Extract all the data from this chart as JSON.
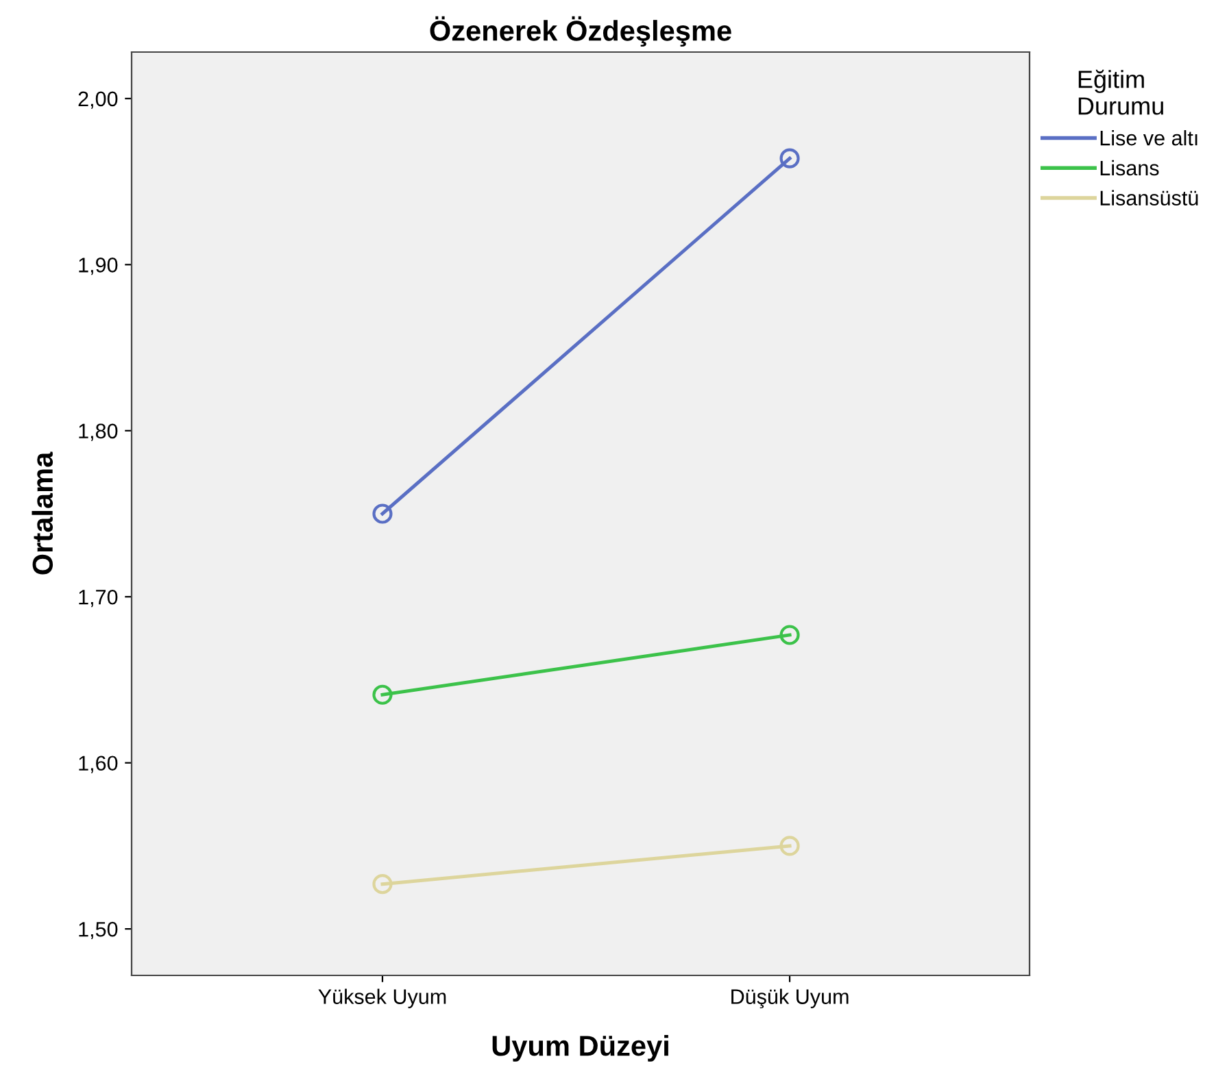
{
  "chart_data": {
    "type": "line",
    "title": "Özenerek Özdeşleşme",
    "xlabel": "Uyum Düzeyi",
    "ylabel": "Ortalama",
    "legend_title": "Eğitim\nDurumu",
    "categories": [
      "Yüksek Uyum",
      "Düşük Uyum"
    ],
    "series": [
      {
        "name": "Lise ve altı",
        "color": "#5a6fc4",
        "values": [
          1.75,
          1.964
        ]
      },
      {
        "name": "Lisans",
        "color": "#3cc24a",
        "values": [
          1.641,
          1.677
        ]
      },
      {
        "name": "Lisansüstü",
        "color": "#ddd59c",
        "values": [
          1.527,
          1.55
        ]
      }
    ],
    "ylim": [
      1.472,
      2.028
    ],
    "yticks": [
      {
        "value": 1.5,
        "label": "1,50"
      },
      {
        "value": 1.6,
        "label": "1,60"
      },
      {
        "value": 1.7,
        "label": "1,70"
      },
      {
        "value": 1.8,
        "label": "1,80"
      },
      {
        "value": 1.9,
        "label": "1,90"
      },
      {
        "value": 2.0,
        "label": "2,00"
      }
    ],
    "grid": false,
    "legend": "right",
    "marker": "circle",
    "line_style": "solid"
  }
}
